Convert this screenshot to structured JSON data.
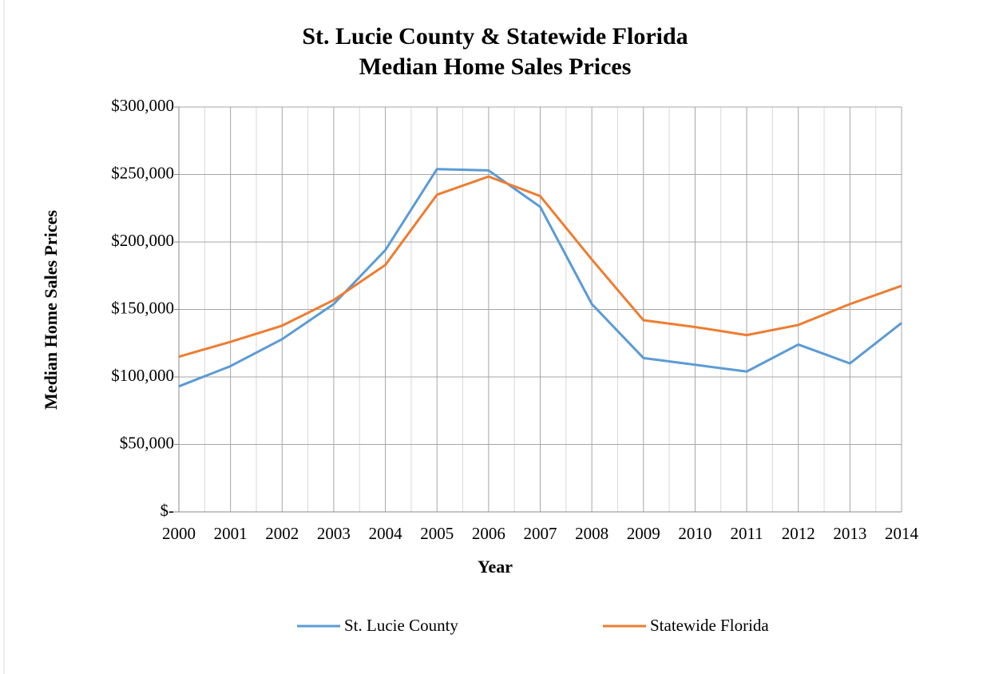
{
  "chart_data": {
    "type": "line",
    "title": [
      "St. Lucie County & Statewide Florida",
      "Median Home Sales Prices"
    ],
    "x_label": "Year",
    "y_label": "Median Home Sales Prices",
    "x": [
      2000,
      2001,
      2002,
      2003,
      2004,
      2005,
      2006,
      2007,
      2008,
      2009,
      2010,
      2011,
      2012,
      2013,
      2014
    ],
    "series": [
      {
        "name": "St. Lucie County",
        "color": "#5b9bd5",
        "values": [
          93000,
          108000,
          128000,
          154000,
          194000,
          254000,
          253000,
          226000,
          154000,
          114000,
          109000,
          104000,
          124000,
          110000,
          140000
        ]
      },
      {
        "name": "Statewide Florida",
        "color": "#ed7d31",
        "values": [
          115000,
          126000,
          138000,
          157000,
          183000,
          235000,
          248500,
          234000,
          187000,
          142000,
          137000,
          131000,
          138500,
          154000,
          167500
        ]
      }
    ],
    "xlim": [
      2000,
      2014
    ],
    "xticks": [
      2000,
      2001,
      2002,
      2003,
      2004,
      2005,
      2006,
      2007,
      2008,
      2009,
      2010,
      2011,
      2012,
      2013,
      2014
    ],
    "ylim": [
      0,
      300000
    ],
    "yticks": [
      {
        "value": 0,
        "label": "$-"
      },
      {
        "value": 50000,
        "label": "$50,000"
      },
      {
        "value": 100000,
        "label": "$100,000"
      },
      {
        "value": 150000,
        "label": "$150,000"
      },
      {
        "value": 200000,
        "label": "$200,000"
      },
      {
        "value": 250000,
        "label": "$250,000"
      },
      {
        "value": 300000,
        "label": "$300,000"
      }
    ],
    "grid": true,
    "legend": "bottom"
  }
}
